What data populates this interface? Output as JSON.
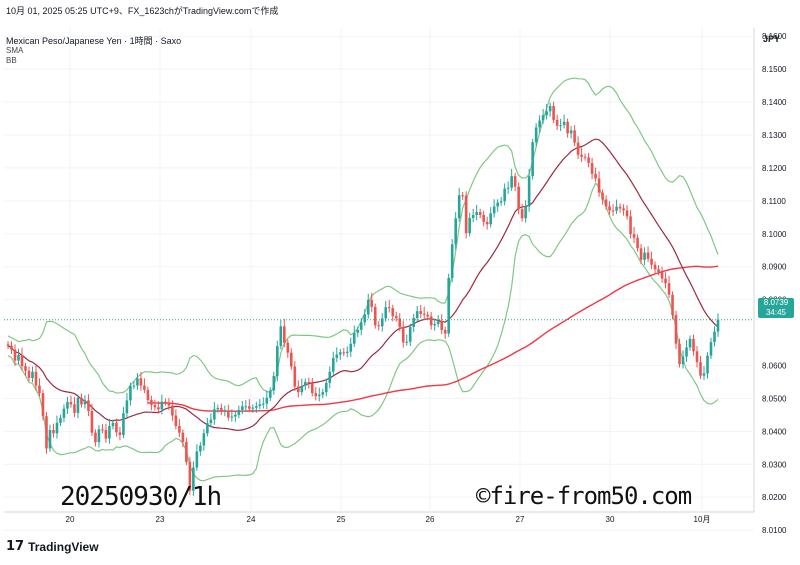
{
  "header": {
    "timestamp_line": "10月 01, 2025 05:25 UTC+9、FX_1623chがTradingView.comで作成",
    "symbol_line": "Mexican Peso/Japanese Yen · 1時間 · Saxo",
    "indicator_1": "SMA",
    "indicator_2": "BB"
  },
  "currency": "JPY",
  "price_badge": {
    "price": "8.0739",
    "countdown": "34:45",
    "color": "#26a69a"
  },
  "footer": {
    "brand": "TradingView",
    "brand_mark": "17"
  },
  "overlay": {
    "date_text": "20250930/1h",
    "copyright": "©fire-from50.com"
  },
  "colors": {
    "up": "#26a69a",
    "down": "#ef5350",
    "sma_long": "#f23645",
    "sma_short": "#9c2a3c",
    "bb": "#81c784",
    "grid": "#f0f3fa"
  },
  "chart_data": {
    "type": "candlestick",
    "ylim": [
      8.0155,
      8.1625
    ],
    "y_ticks": [
      "8.1600",
      "8.1500",
      "8.1400",
      "8.1300",
      "8.1200",
      "8.1100",
      "8.1000",
      "8.0900",
      "8.0800",
      "8.0600",
      "8.0500",
      "8.0400",
      "8.0300",
      "8.0200",
      "8.0100"
    ],
    "x_ticks": [
      "20",
      "23",
      "24",
      "25",
      "26",
      "27",
      "30",
      "10月"
    ],
    "last_price": 8.0739,
    "grid": true,
    "closes": [
      8.066,
      8.0648,
      8.0615,
      8.0632,
      8.0598,
      8.0584,
      8.0562,
      8.0581,
      8.0539,
      8.0516,
      8.0446,
      8.0348,
      8.0404,
      8.0394,
      8.0426,
      8.0441,
      8.0469,
      8.0489,
      8.0482,
      8.0456,
      8.0502,
      8.0482,
      8.0494,
      8.0462,
      8.0396,
      8.0367,
      8.0406,
      8.0404,
      8.0378,
      8.0416,
      8.0426,
      8.0397,
      8.0389,
      8.0455,
      8.0494,
      8.0538,
      8.0539,
      8.0561,
      8.0539,
      8.0526,
      8.0495,
      8.048,
      8.0473,
      8.0467,
      8.049,
      8.0488,
      8.0478,
      8.0448,
      8.0416,
      8.0396,
      8.0368,
      8.0307,
      8.022,
      8.029,
      8.0339,
      8.0357,
      8.0394,
      8.0425,
      8.0436,
      8.0467,
      8.0471,
      8.0462,
      8.0462,
      8.0442,
      8.0445,
      8.045,
      8.0465,
      8.0476,
      8.0476,
      8.0469,
      8.0472,
      8.0477,
      8.0482,
      8.0484,
      8.0502,
      8.0524,
      8.0568,
      8.0659,
      8.0719,
      8.0669,
      8.0639,
      8.0597,
      8.0536,
      8.0519,
      8.0538,
      8.055,
      8.0546,
      8.0516,
      8.0507,
      8.0511,
      8.0519,
      8.0547,
      8.0581,
      8.0623,
      8.0633,
      8.064,
      8.0638,
      8.0642,
      8.0666,
      8.0699,
      8.0708,
      8.0731,
      8.0755,
      8.0799,
      8.0778,
      8.0722,
      8.0719,
      8.0743,
      8.0777,
      8.0774,
      8.075,
      8.0743,
      8.0717,
      8.067,
      8.0672,
      8.0717,
      8.0744,
      8.0765,
      8.0757,
      8.0754,
      8.0749,
      8.0722,
      8.0726,
      8.0734,
      8.0708,
      8.0697,
      8.0866,
      8.0968,
      8.1047,
      8.1117,
      8.1116,
      8.1002,
      8.1048,
      8.1057,
      8.1066,
      8.1057,
      8.1036,
      8.1029,
      8.1062,
      8.1083,
      8.1095,
      8.1099,
      8.1137,
      8.114,
      8.1175,
      8.1143,
      8.1075,
      8.1047,
      8.1083,
      8.1175,
      8.1278,
      8.1323,
      8.1344,
      8.136,
      8.1372,
      8.1388,
      8.1346,
      8.1328,
      8.133,
      8.134,
      8.1305,
      8.1314,
      8.1277,
      8.124,
      8.1234,
      8.1232,
      8.1215,
      8.1182,
      8.1168,
      8.1125,
      8.1104,
      8.1083,
      8.1071,
      8.107,
      8.1082,
      8.1077,
      8.1071,
      8.1053,
      8.0999,
      8.0988,
      8.0956,
      8.0921,
      8.0943,
      8.0924,
      8.0906,
      8.0892,
      8.0884,
      8.0864,
      8.085,
      8.0815,
      8.0753,
      8.0666,
      8.0604,
      8.0627,
      8.0655,
      8.0681,
      8.0643,
      8.061,
      8.0569,
      8.0576,
      8.063,
      8.0671,
      8.0703,
      8.0739
    ]
  }
}
